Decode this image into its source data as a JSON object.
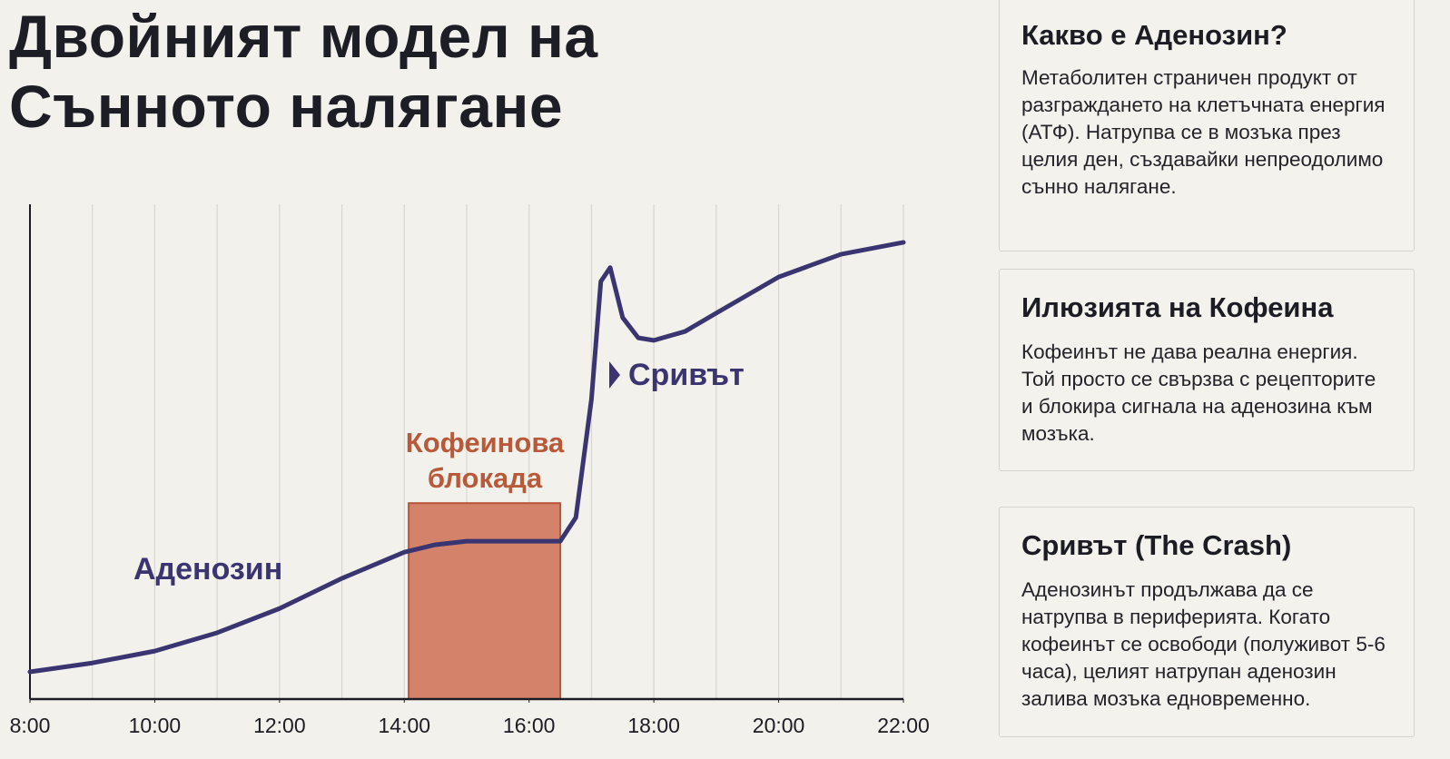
{
  "chart_data": {
    "type": "line",
    "title": "Двойният модел на Сънното налягане",
    "x": [
      8,
      9,
      10,
      11,
      12,
      13,
      14,
      14.5,
      15,
      16,
      16.5,
      16.75,
      17,
      17.15,
      17.3,
      17.5,
      17.75,
      18,
      18.5,
      19,
      20,
      21,
      22
    ],
    "series": [
      {
        "name": "Аденозин",
        "color": "#3a3570",
        "values": [
          5.5,
          7.3,
          9.7,
          13.4,
          18.3,
          24.4,
          29.7,
          31.2,
          31.9,
          31.9,
          31.9,
          36.7,
          60.6,
          84.4,
          87.2,
          77.1,
          73,
          72.5,
          74.3,
          78,
          85.3,
          89.9,
          92.3
        ]
      }
    ],
    "xlim": [
      8,
      22
    ],
    "ylim": [
      0,
      100
    ],
    "xticks": [
      {
        "value": 8,
        "label": "8:00"
      },
      {
        "value": 10,
        "label": "10:00"
      },
      {
        "value": 12,
        "label": "12:00"
      },
      {
        "value": 14,
        "label": "14:00"
      },
      {
        "value": 16,
        "label": "16:00"
      },
      {
        "value": 18,
        "label": "18:00"
      },
      {
        "value": 20,
        "label": "20:00"
      },
      {
        "value": 22,
        "label": "22:00"
      }
    ],
    "xgrid": [
      9,
      10,
      11,
      12,
      13,
      14,
      15,
      16,
      17,
      18,
      19,
      20,
      21,
      22
    ],
    "block": {
      "label": "Кофеинова блокада",
      "x": [
        14.07,
        16.5
      ],
      "height": 39.6,
      "color": "#d4826a"
    },
    "crash_label": "Сривът"
  },
  "cards": [
    {
      "title": "Какво е Аденозин?",
      "body": "Метаболитен страничен продукт от разграждането на клетъчната енергия (АТФ). Натрупва се в мозъка през целия ден, създавайки непреодолимо сънно налягане."
    },
    {
      "title": "Илюзията на Кофеина",
      "body": "Кофеинът не дава реална енергия. Той просто се свързва с рецепторите и блокира сигнала на аденозина към мозъка."
    },
    {
      "title": "Сривът (The Crash)",
      "body": "Аденозинът продължава да се натрупва в периферията. Когато кофеинът се освободи (полуживот 5-6 часа), целият натрупан аденозин залива мозъка едновременно."
    }
  ]
}
